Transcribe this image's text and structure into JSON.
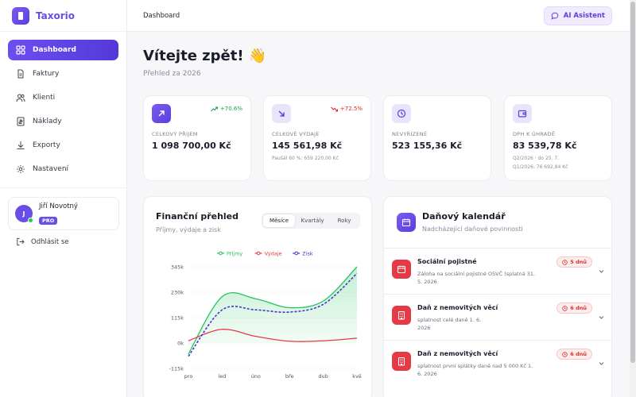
{
  "app": {
    "name": "Taxorio"
  },
  "sidebar": {
    "items": [
      {
        "label": "Dashboard",
        "icon": "dashboard-icon",
        "active": true
      },
      {
        "label": "Faktury",
        "icon": "invoice-icon"
      },
      {
        "label": "Klienti",
        "icon": "users-icon"
      },
      {
        "label": "Náklady",
        "icon": "receipt-icon"
      },
      {
        "label": "Exporty",
        "icon": "download-icon"
      },
      {
        "label": "Nastavení",
        "icon": "gear-icon"
      }
    ],
    "user": {
      "initial": "J",
      "name": "Jiří Novotný",
      "badge": "PRO"
    },
    "logout_label": "Odhlásit se"
  },
  "header": {
    "breadcrumb": "Dashboard",
    "ai_button": "AI Asistent"
  },
  "welcome": {
    "title": "Vítejte zpět! 👋",
    "subtitle": "Přehled za 2026"
  },
  "stats": [
    {
      "label": "CELKOVÝ PŘÍJEM",
      "value": "1 098 700,00 Kč",
      "trend": "+70.6%",
      "trend_dir": "up",
      "color": "#6a4de6",
      "icon": "arrow-up-right-icon"
    },
    {
      "label": "CELKOVÉ VÝDAJE",
      "value": "145 561,98 Kč",
      "trend": "+72.5%",
      "trend_dir": "down",
      "note": "Paušál 60 %: 659 220,00 Kč",
      "color": "#e8e4fb",
      "icon": "arrow-down-right-icon"
    },
    {
      "label": "NEVYŘÍZENÉ",
      "value": "523 155,36 Kč",
      "color": "#e8e4fb",
      "icon": "clock-icon"
    },
    {
      "label": "DPH K ÚHRADĚ",
      "value": "83 539,78 Kč",
      "note1": "Q2/2026 · do 25. 7.",
      "note2": "Q1/2026: 76 692,84 Kč",
      "color": "#e8e4fb",
      "icon": "wallet-icon"
    }
  ],
  "finance": {
    "title": "Finanční přehled",
    "subtitle": "Příjmy, výdaje a zisk",
    "tabs": [
      "Měsíce",
      "Kvartály",
      "Roky"
    ],
    "active_tab": "Měsíce"
  },
  "chart_data": {
    "type": "area",
    "categories": [
      "pro",
      "led",
      "úno",
      "bře",
      "dub",
      "kvě"
    ],
    "series": [
      {
        "name": "Příjmy",
        "color": "#22c55e",
        "values": [
          -50000,
          210000,
          200000,
          160000,
          190000,
          345000
        ]
      },
      {
        "name": "Výdaje",
        "color": "#e53945",
        "values": [
          10000,
          62000,
          30000,
          8000,
          10000,
          22000
        ]
      },
      {
        "name": "Zisk",
        "color": "#4338ca",
        "values": [
          -60000,
          150000,
          150000,
          140000,
          175000,
          315000
        ]
      }
    ],
    "y_ticks": [
      "345k",
      "230k",
      "115k",
      "0k",
      "-115k"
    ],
    "ylim": [
      -115000,
      345000
    ],
    "legend": "top"
  },
  "calendar": {
    "title": "Daňový kalendář",
    "subtitle": "Nadcházející daňové povinnosti",
    "items": [
      {
        "title": "Sociální pojistné",
        "desc": "Záloha na sociální pojistné OSVČ (splatná 31. 5. 2026",
        "badge": "5 dnů",
        "icon": "calendar-icon"
      },
      {
        "title": "Daň z nemovitých věcí",
        "desc": "splatnost celé daně 1. 6. 2026",
        "badge": "6 dnů",
        "icon": "building-icon"
      },
      {
        "title": "Daň z nemovitých věcí",
        "desc": "splatnost první splátky daně nad 5 000 Kč 1. 6. 2026",
        "badge": "6 dnů",
        "icon": "building-icon"
      }
    ]
  }
}
